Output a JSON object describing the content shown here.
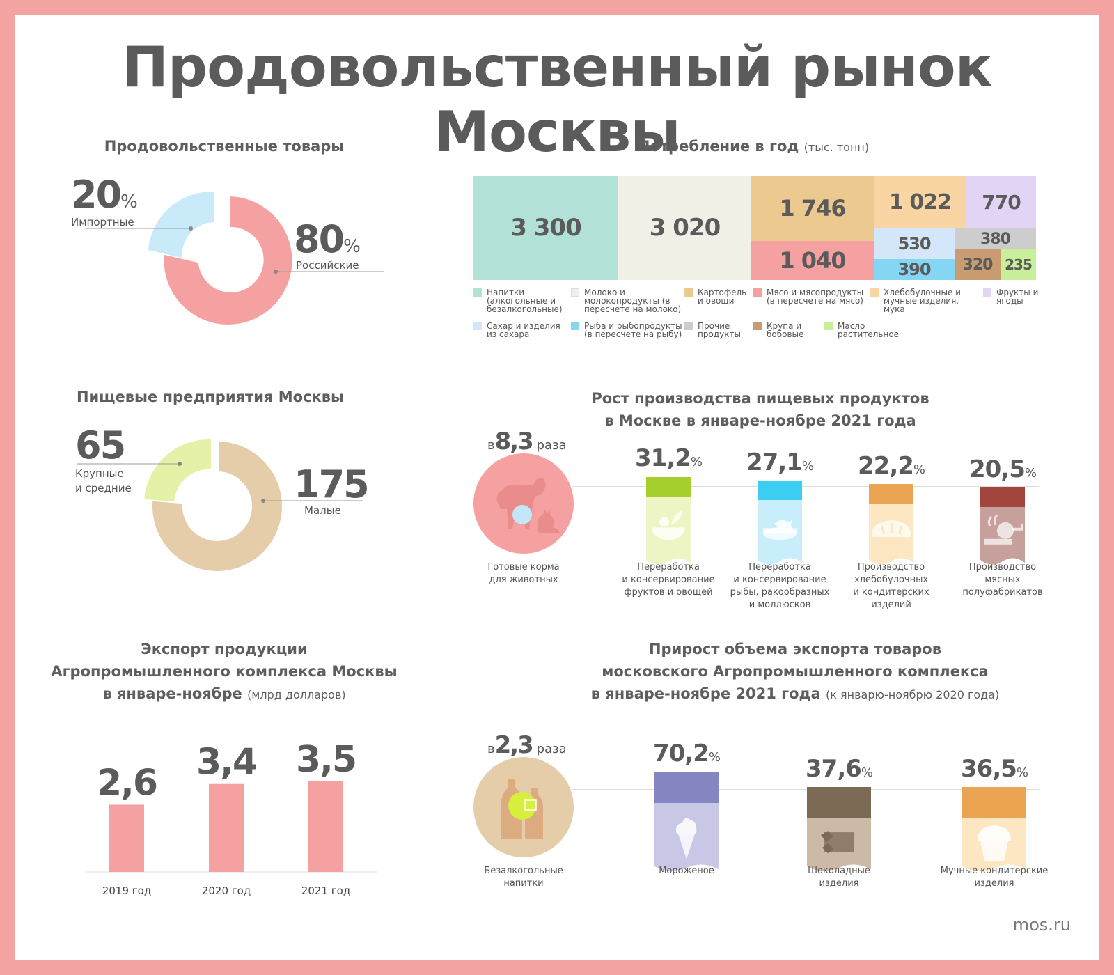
{
  "title": "Продовольственный рынок Москвы",
  "footer": "mos.ru",
  "food_goods": {
    "title": "Продовольственные товары",
    "imported": {
      "value": "20",
      "unit": "%",
      "label": "Импортные"
    },
    "russian": {
      "value": "80",
      "unit": "%",
      "label": "Российские"
    }
  },
  "consumption": {
    "title": "Потребление в год",
    "unit": "(тыс. тонн)",
    "cells": {
      "drinks": "3 300",
      "dairy": "3 020",
      "potatoes": "1 746",
      "meat": "1 040",
      "bakery": "1 022",
      "fruits": "770",
      "sugar": "530",
      "fish": "390",
      "other": "380",
      "grain": "320",
      "oil": "235"
    },
    "legend": [
      {
        "label": "Напитки (алкогольные и безалкогольные)",
        "color": "#b2e2d7"
      },
      {
        "label": "Молоко и молокопродукты (в пересчете на молоко)",
        "color": "#f1f0e7"
      },
      {
        "label": "Картофель и овощи",
        "color": "#ecc98f"
      },
      {
        "label": "Мясо и мясопродукты (в пересчете на мясо)",
        "color": "#f6a1a1"
      },
      {
        "label": "Хлебобулочные и мучные изделия, мука",
        "color": "#f8d5a3"
      },
      {
        "label": "Фрукты и ягоды",
        "color": "#e2d4f5"
      },
      {
        "label": "Сахар и изделия из сахара",
        "color": "#d4e6f9"
      },
      {
        "label": "Рыба и рыбопродукты (в пересчете на рыбу)",
        "color": "#85d6f2"
      },
      {
        "label": "Прочие продукты",
        "color": "#cdcdcd"
      },
      {
        "label": "Крупа и бобовые",
        "color": "#c99b71"
      },
      {
        "label": "Масло растительное",
        "color": "#c9ef9b"
      }
    ]
  },
  "enterprises": {
    "title": "Пищевые предприятия Москвы",
    "large": {
      "value": "65",
      "label_1": "Крупные",
      "label_2": "и средние"
    },
    "small": {
      "value": "175",
      "label": "Малые"
    }
  },
  "production_growth": {
    "title_1": "Рост производства пищевых продуктов",
    "title_2": "в Москве в январе-ноябре 2021 года",
    "lead": {
      "prefix": "в",
      "value": "8,3",
      "suffix": "раза",
      "label_1": "Готовые корма",
      "label_2": "для животных"
    },
    "items": [
      {
        "value": "31,2",
        "unit": "%",
        "color": "#a4cf2d",
        "light": "#eef5c4",
        "icon": "salad-bowl-icon",
        "lines": [
          "Переработка",
          "и консервирование",
          "фруктов и овощей"
        ]
      },
      {
        "value": "27,1",
        "unit": "%",
        "color": "#3ccdf2",
        "light": "#c8eefb",
        "icon": "fish-can-icon",
        "lines": [
          "Переработка",
          "и консервирование",
          "рыбы, ракообразных",
          "и моллюсков"
        ]
      },
      {
        "value": "22,2",
        "unit": "%",
        "color": "#eba552",
        "light": "#fde6c2",
        "icon": "bread-icon",
        "lines": [
          "Производство",
          "хлебобулочных",
          "и кондитерских",
          "изделий"
        ]
      },
      {
        "value": "20,5",
        "unit": "%",
        "color": "#a2453d",
        "light": "#c8a09b",
        "icon": "meat-grinder-icon",
        "lines": [
          "Производство",
          "мясных",
          "полуфабрикатов"
        ]
      }
    ]
  },
  "export": {
    "title_1": "Экспорт продукции",
    "title_2": "Агропромышленного комплекса Москвы",
    "title_3": "в январе-ноябре",
    "unit": "(млрд долларов)"
  },
  "chart_data": {
    "type": "bar",
    "categories": [
      "2019 год",
      "2020 год",
      "2021 год"
    ],
    "values": [
      2.6,
      3.4,
      3.5
    ],
    "value_labels": [
      "2,6",
      "3,4",
      "3,5"
    ],
    "ylim": [
      0,
      3.5
    ],
    "color": "#f6a1a1"
  },
  "export_growth": {
    "title_1": "Прирост объема экспорта товаров",
    "title_2": "московского Агропромышленного комплекса",
    "title_3": "в январе-ноябре 2021 года",
    "note": "(к январю-ноябрю 2020 года)",
    "lead": {
      "prefix": "в",
      "value": "2,3",
      "suffix": "раза",
      "label_1": "Безалкогольные",
      "label_2": "напитки"
    },
    "items": [
      {
        "value": "70,2",
        "unit": "%",
        "color": "#8486c2",
        "light": "#c9c7e6",
        "icon": "ice-cream-icon",
        "lines": [
          "Мороженое"
        ]
      },
      {
        "value": "37,6",
        "unit": "%",
        "color": "#7d6a55",
        "light": "#cbbba6",
        "icon": "chocolate-icon",
        "lines": [
          "Шоколадные",
          "изделия"
        ]
      },
      {
        "value": "36,5",
        "unit": "%",
        "color": "#eba552",
        "light": "#fde6c2",
        "icon": "cupcake-icon",
        "lines": [
          "Мучные кондитерские",
          "изделия"
        ]
      }
    ]
  }
}
